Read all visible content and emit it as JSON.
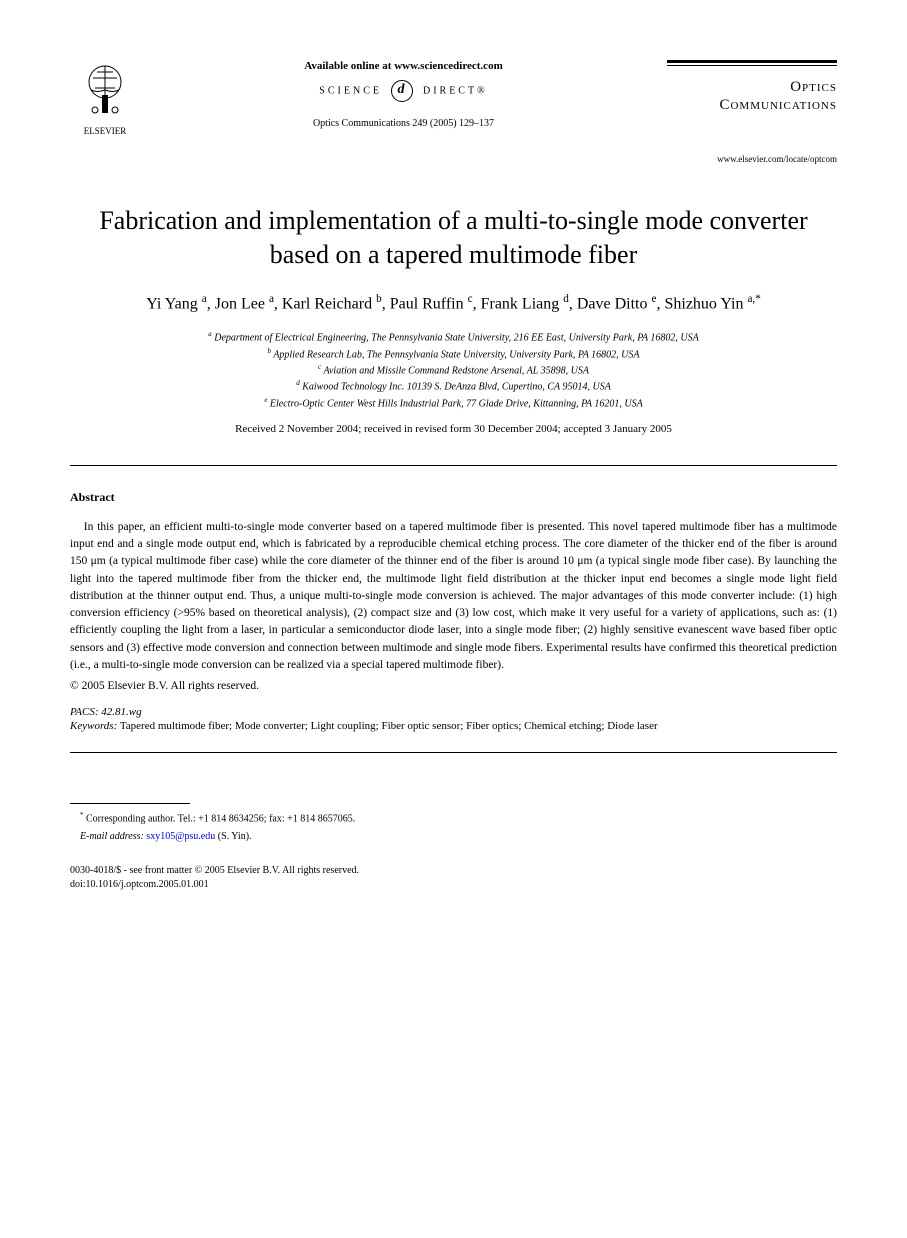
{
  "header": {
    "publisher": "ELSEVIER",
    "available_online": "Available online at www.sciencedirect.com",
    "sd_left": "SCIENCE",
    "sd_right": "DIRECT®",
    "citation": "Optics Communications 249 (2005) 129–137",
    "journal_line1": "Optics",
    "journal_line2": "Communications",
    "journal_url": "www.elsevier.com/locate/optcom"
  },
  "title": "Fabrication and implementation of a multi-to-single mode converter based on a tapered multimode fiber",
  "authors_html": "Yi Yang <sup>a</sup>, Jon Lee <sup>a</sup>, Karl Reichard <sup>b</sup>, Paul Ruffin <sup>c</sup>, Frank Liang <sup>d</sup>, Dave Ditto <sup>e</sup>, Shizhuo Yin <sup>a,*</sup>",
  "affiliations": {
    "a": "Department of Electrical Engineering, The Pennsylvania State University, 216 EE East, University Park, PA 16802, USA",
    "b": "Applied Research Lab, The Pennsylvania State University, University Park, PA 16802, USA",
    "c": "Aviation and Missile Command Redstone Arsenal, AL 35898, USA",
    "d": "Kaiwood Technology Inc. 10139 S. DeAnza Blvd, Cupertino, CA 95014, USA",
    "e": "Electro-Optic Center West Hills Industrial Park, 77 Glade Drive, Kittanning, PA 16201, USA"
  },
  "dates": "Received 2 November 2004; received in revised form 30 December 2004; accepted 3 January 2005",
  "abstract": {
    "heading": "Abstract",
    "body": "In this paper, an efficient multi-to-single mode converter based on a tapered multimode fiber is presented. This novel tapered multimode fiber has a multimode input end and a single mode output end, which is fabricated by a reproducible chemical etching process. The core diameter of the thicker end of the fiber is around 150 μm (a typical multimode fiber case) while the core diameter of the thinner end of the fiber is around 10 μm (a typical single mode fiber case). By launching the light into the tapered multimode fiber from the thicker end, the multimode light field distribution at the thicker input end becomes a single mode light field distribution at the thinner output end. Thus, a unique multi-to-single mode conversion is achieved. The major advantages of this mode converter include: (1) high conversion efficiency (>95% based on theoretical analysis), (2) compact size and (3) low cost, which make it very useful for a variety of applications, such as: (1) efficiently coupling the light from a laser, in particular a semiconductor diode laser, into a single mode fiber; (2) highly sensitive evanescent wave based fiber optic sensors and (3) effective mode conversion and connection between multimode and single mode fibers. Experimental results have confirmed this theoretical prediction (i.e., a multi-to-single mode conversion can be realized via a special tapered multimode fiber).",
    "copyright": "© 2005 Elsevier B.V. All rights reserved."
  },
  "pacs": {
    "label": "PACS:",
    "value": "42.81.wg"
  },
  "keywords": {
    "label": "Keywords:",
    "value": "Tapered multimode fiber; Mode converter; Light coupling; Fiber optic sensor; Fiber optics; Chemical etching; Diode laser"
  },
  "footnote": {
    "corr": "Corresponding author. Tel.: +1 814 8634256; fax: +1 814 8657065.",
    "email_label": "E-mail address:",
    "email": "sxy105@psu.edu",
    "email_suffix": "(S. Yin)."
  },
  "footer": {
    "line1": "0030-4018/$ - see front matter © 2005 Elsevier B.V. All rights reserved.",
    "line2": "doi:10.1016/j.optcom.2005.01.001"
  }
}
